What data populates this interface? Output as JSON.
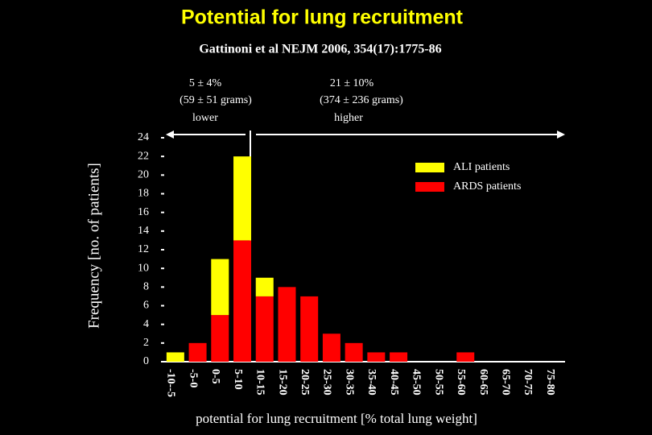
{
  "chart_data": {
    "type": "stacked-bar",
    "title": "Potential for lung recruitment",
    "subtitle": "Gattinoni et al NEJM 2006, 354(17):1775-86",
    "ylabel": "Frequency [no. of patients]",
    "xlabel": "potential for lung recruitment [% total lung weight]",
    "annotations": {
      "lower_mean": "5 ± 4%",
      "lower_grams": "(59 ± 51 grams)",
      "lower": "lower",
      "higher_mean": "21 ± 10%",
      "higher_grams": "(374 ± 236 grams)",
      "higher": "higher"
    },
    "categories": [
      "-10--5",
      "-5-0",
      "0-5",
      "5-10",
      "10-15",
      "15-20",
      "20-25",
      "25-30",
      "30-35",
      "35-40",
      "40-45",
      "45-50",
      "50-55",
      "55-60",
      "60-65",
      "65-70",
      "70-75",
      "75-80"
    ],
    "series": [
      {
        "name": "ARDS patients",
        "color": "#ff0000",
        "values": [
          0,
          2,
          5,
          13,
          7,
          8,
          7,
          3,
          2,
          1,
          1,
          0,
          0,
          1,
          0,
          0,
          0,
          0
        ]
      },
      {
        "name": "ALI patients",
        "color": "#ffff00",
        "values": [
          1,
          0,
          6,
          9,
          2,
          0,
          0,
          0,
          0,
          0,
          0,
          0,
          0,
          0,
          0,
          0,
          0,
          0
        ]
      }
    ],
    "ylim": [
      0,
      24
    ],
    "yticks": [
      0,
      2,
      4,
      6,
      8,
      10,
      12,
      14,
      16,
      18,
      20,
      22,
      24
    ]
  }
}
